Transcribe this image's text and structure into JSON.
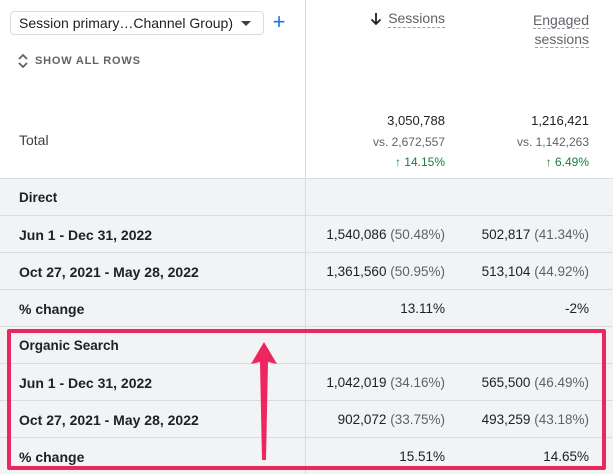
{
  "dimension_select": {
    "label": "Session primary…Channel Group)"
  },
  "controls": {
    "add_label": "+",
    "show_all_rows": "SHOW ALL ROWS"
  },
  "columns": {
    "sessions": {
      "label": "Sessions",
      "sorted": "descending"
    },
    "engaged_line1": "Engaged",
    "engaged_line2": "sessions"
  },
  "total": {
    "label": "Total",
    "sessions": {
      "value": "3,050,788",
      "vs": "vs. 2,672,557",
      "change": "↑ 14.15%"
    },
    "engaged": {
      "value": "1,216,421",
      "vs": "vs. 1,142,263",
      "change": "↑ 6.49%"
    }
  },
  "groups": [
    {
      "name": "Direct",
      "rows": [
        {
          "label": "Jun 1 - Dec 31, 2022",
          "sessions": "1,540,086",
          "sessions_pct": "(50.48%)",
          "engaged": "502,817",
          "engaged_pct": "(41.34%)"
        },
        {
          "label": "Oct 27, 2021 - May 28, 2022",
          "sessions": "1,361,560",
          "sessions_pct": "(50.95%)",
          "engaged": "513,104",
          "engaged_pct": "(44.92%)"
        },
        {
          "label": "% change",
          "sessions": "13.11%",
          "engaged": "-2%"
        }
      ]
    },
    {
      "name": "Organic Search",
      "rows": [
        {
          "label": "Jun 1 - Dec 31, 2022",
          "sessions": "1,042,019",
          "sessions_pct": "(34.16%)",
          "engaged": "565,500",
          "engaged_pct": "(46.49%)"
        },
        {
          "label": "Oct 27, 2021 - May 28, 2022",
          "sessions": "902,072",
          "sessions_pct": "(33.75%)",
          "engaged": "493,259",
          "engaged_pct": "(43.18%)"
        },
        {
          "label": "% change",
          "sessions": "15.51%",
          "engaged": "14.65%"
        }
      ]
    }
  ],
  "colors": {
    "accent": "#1a73e8",
    "positive": "#188038",
    "highlight": "#ee2660",
    "row_grey": "#f1f3f4"
  }
}
